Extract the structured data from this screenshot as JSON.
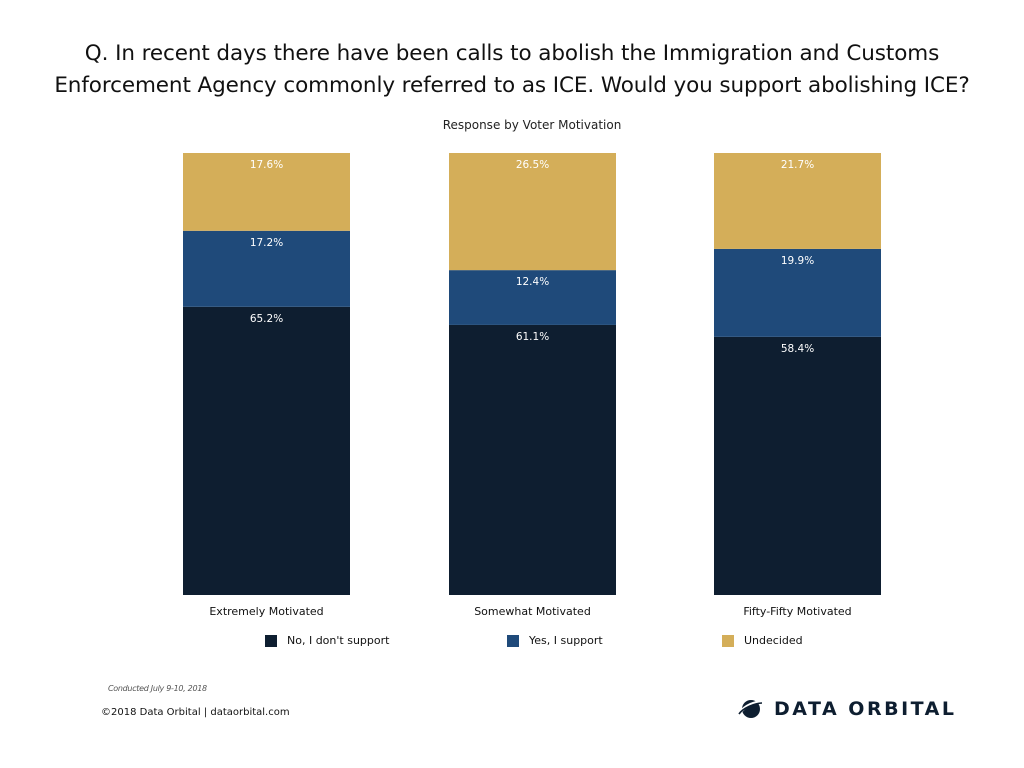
{
  "title": {
    "line1": "Q. In recent days there have been calls to abolish the Immigration and Customs",
    "line2": "Enforcement Agency commonly referred to as ICE. Would you support abolishing ICE?"
  },
  "subtitle": "Response by Voter Motivation",
  "colors": {
    "no": "#0e1e30",
    "yes": "#1f4a7a",
    "undecided": "#d4ae59"
  },
  "chart_data": {
    "type": "bar",
    "stacked": true,
    "title": "Response by Voter Motivation",
    "categories": [
      "Extremely Motivated",
      "Somewhat Motivated",
      "Fifty-Fifty Motivated"
    ],
    "series": [
      {
        "name": "No, I don't support",
        "key": "no",
        "values": [
          65.2,
          61.1,
          58.4
        ],
        "labels": [
          "65.2%",
          "61.1%",
          "58.4%"
        ]
      },
      {
        "name": "Yes, I support",
        "key": "yes",
        "values": [
          17.2,
          12.4,
          19.9
        ],
        "labels": [
          "17.2%",
          "12.4%",
          "19.9%"
        ]
      },
      {
        "name": "Undecided",
        "key": "undecided",
        "values": [
          17.6,
          26.5,
          21.7
        ],
        "labels": [
          "17.6%",
          "26.5%",
          "21.7%"
        ]
      }
    ],
    "ylim": [
      0,
      100
    ],
    "xlabel": "",
    "ylabel": "",
    "legend_position": "bottom"
  },
  "footnote": "Conducted July 9-10, 2018",
  "copyright": "©2018 Data Orbital | dataorbital.com",
  "brand": {
    "name": "DATA ORBITAL",
    "icon": "data-orbital-logo-icon"
  }
}
